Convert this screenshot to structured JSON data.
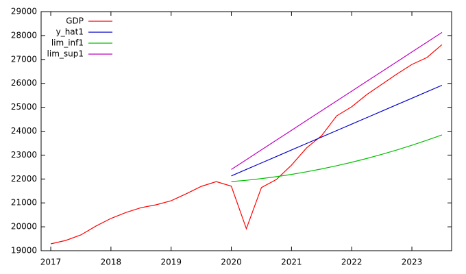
{
  "chart_data": {
    "type": "line",
    "x": [
      2017,
      2017.25,
      2017.5,
      2017.75,
      2018,
      2018.25,
      2018.5,
      2018.75,
      2019,
      2019.25,
      2019.5,
      2019.75,
      2020,
      2020.25,
      2020.5,
      2020.75,
      2021,
      2021.25,
      2021.5,
      2021.75,
      2022,
      2022.25,
      2022.5,
      2022.75,
      2023,
      2023.25,
      2023.5
    ],
    "series": [
      {
        "name": "GDP",
        "color": "#ff0000",
        "values": [
          19287,
          19430,
          19660,
          20030,
          20350,
          20600,
          20800,
          20920,
          21090,
          21380,
          21690,
          21890,
          21700,
          19920,
          21640,
          21980,
          22580,
          23300,
          23810,
          24640,
          25020,
          25530,
          25960,
          26390,
          26790,
          27080,
          27620
        ]
      },
      {
        "name": "y_hat1",
        "color": "#0000cc",
        "values": [
          null,
          null,
          null,
          null,
          null,
          null,
          null,
          null,
          null,
          null,
          null,
          null,
          22130,
          22401,
          22671,
          22942,
          23213,
          23484,
          23754,
          24025,
          24296,
          24566,
          24837,
          25108,
          25378,
          25649,
          25920
        ]
      },
      {
        "name": "lim_inf1",
        "color": "#00c000",
        "values": [
          null,
          null,
          null,
          null,
          null,
          null,
          null,
          null,
          null,
          null,
          null,
          null,
          21890,
          21946,
          22016,
          22098,
          22192,
          22300,
          22420,
          22554,
          22700,
          22858,
          23030,
          23214,
          23412,
          23622,
          23844
        ]
      },
      {
        "name": "lim_sup1",
        "color": "#c000c0",
        "values": [
          null,
          null,
          null,
          null,
          null,
          null,
          null,
          null,
          null,
          null,
          null,
          null,
          22400,
          22809,
          23219,
          23628,
          24037,
          24447,
          24856,
          25265,
          25674,
          26084,
          26493,
          26902,
          27312,
          27721,
          28130
        ]
      }
    ],
    "xlim": [
      2016.84,
      2023.66
    ],
    "xticks": [
      2017,
      2018,
      2019,
      2020,
      2021,
      2022,
      2023
    ],
    "ylim": [
      19000,
      29000
    ],
    "yticks": [
      19000,
      20000,
      21000,
      22000,
      23000,
      24000,
      25000,
      26000,
      27000,
      28000,
      29000
    ],
    "grid": false,
    "legend": "top-left"
  }
}
